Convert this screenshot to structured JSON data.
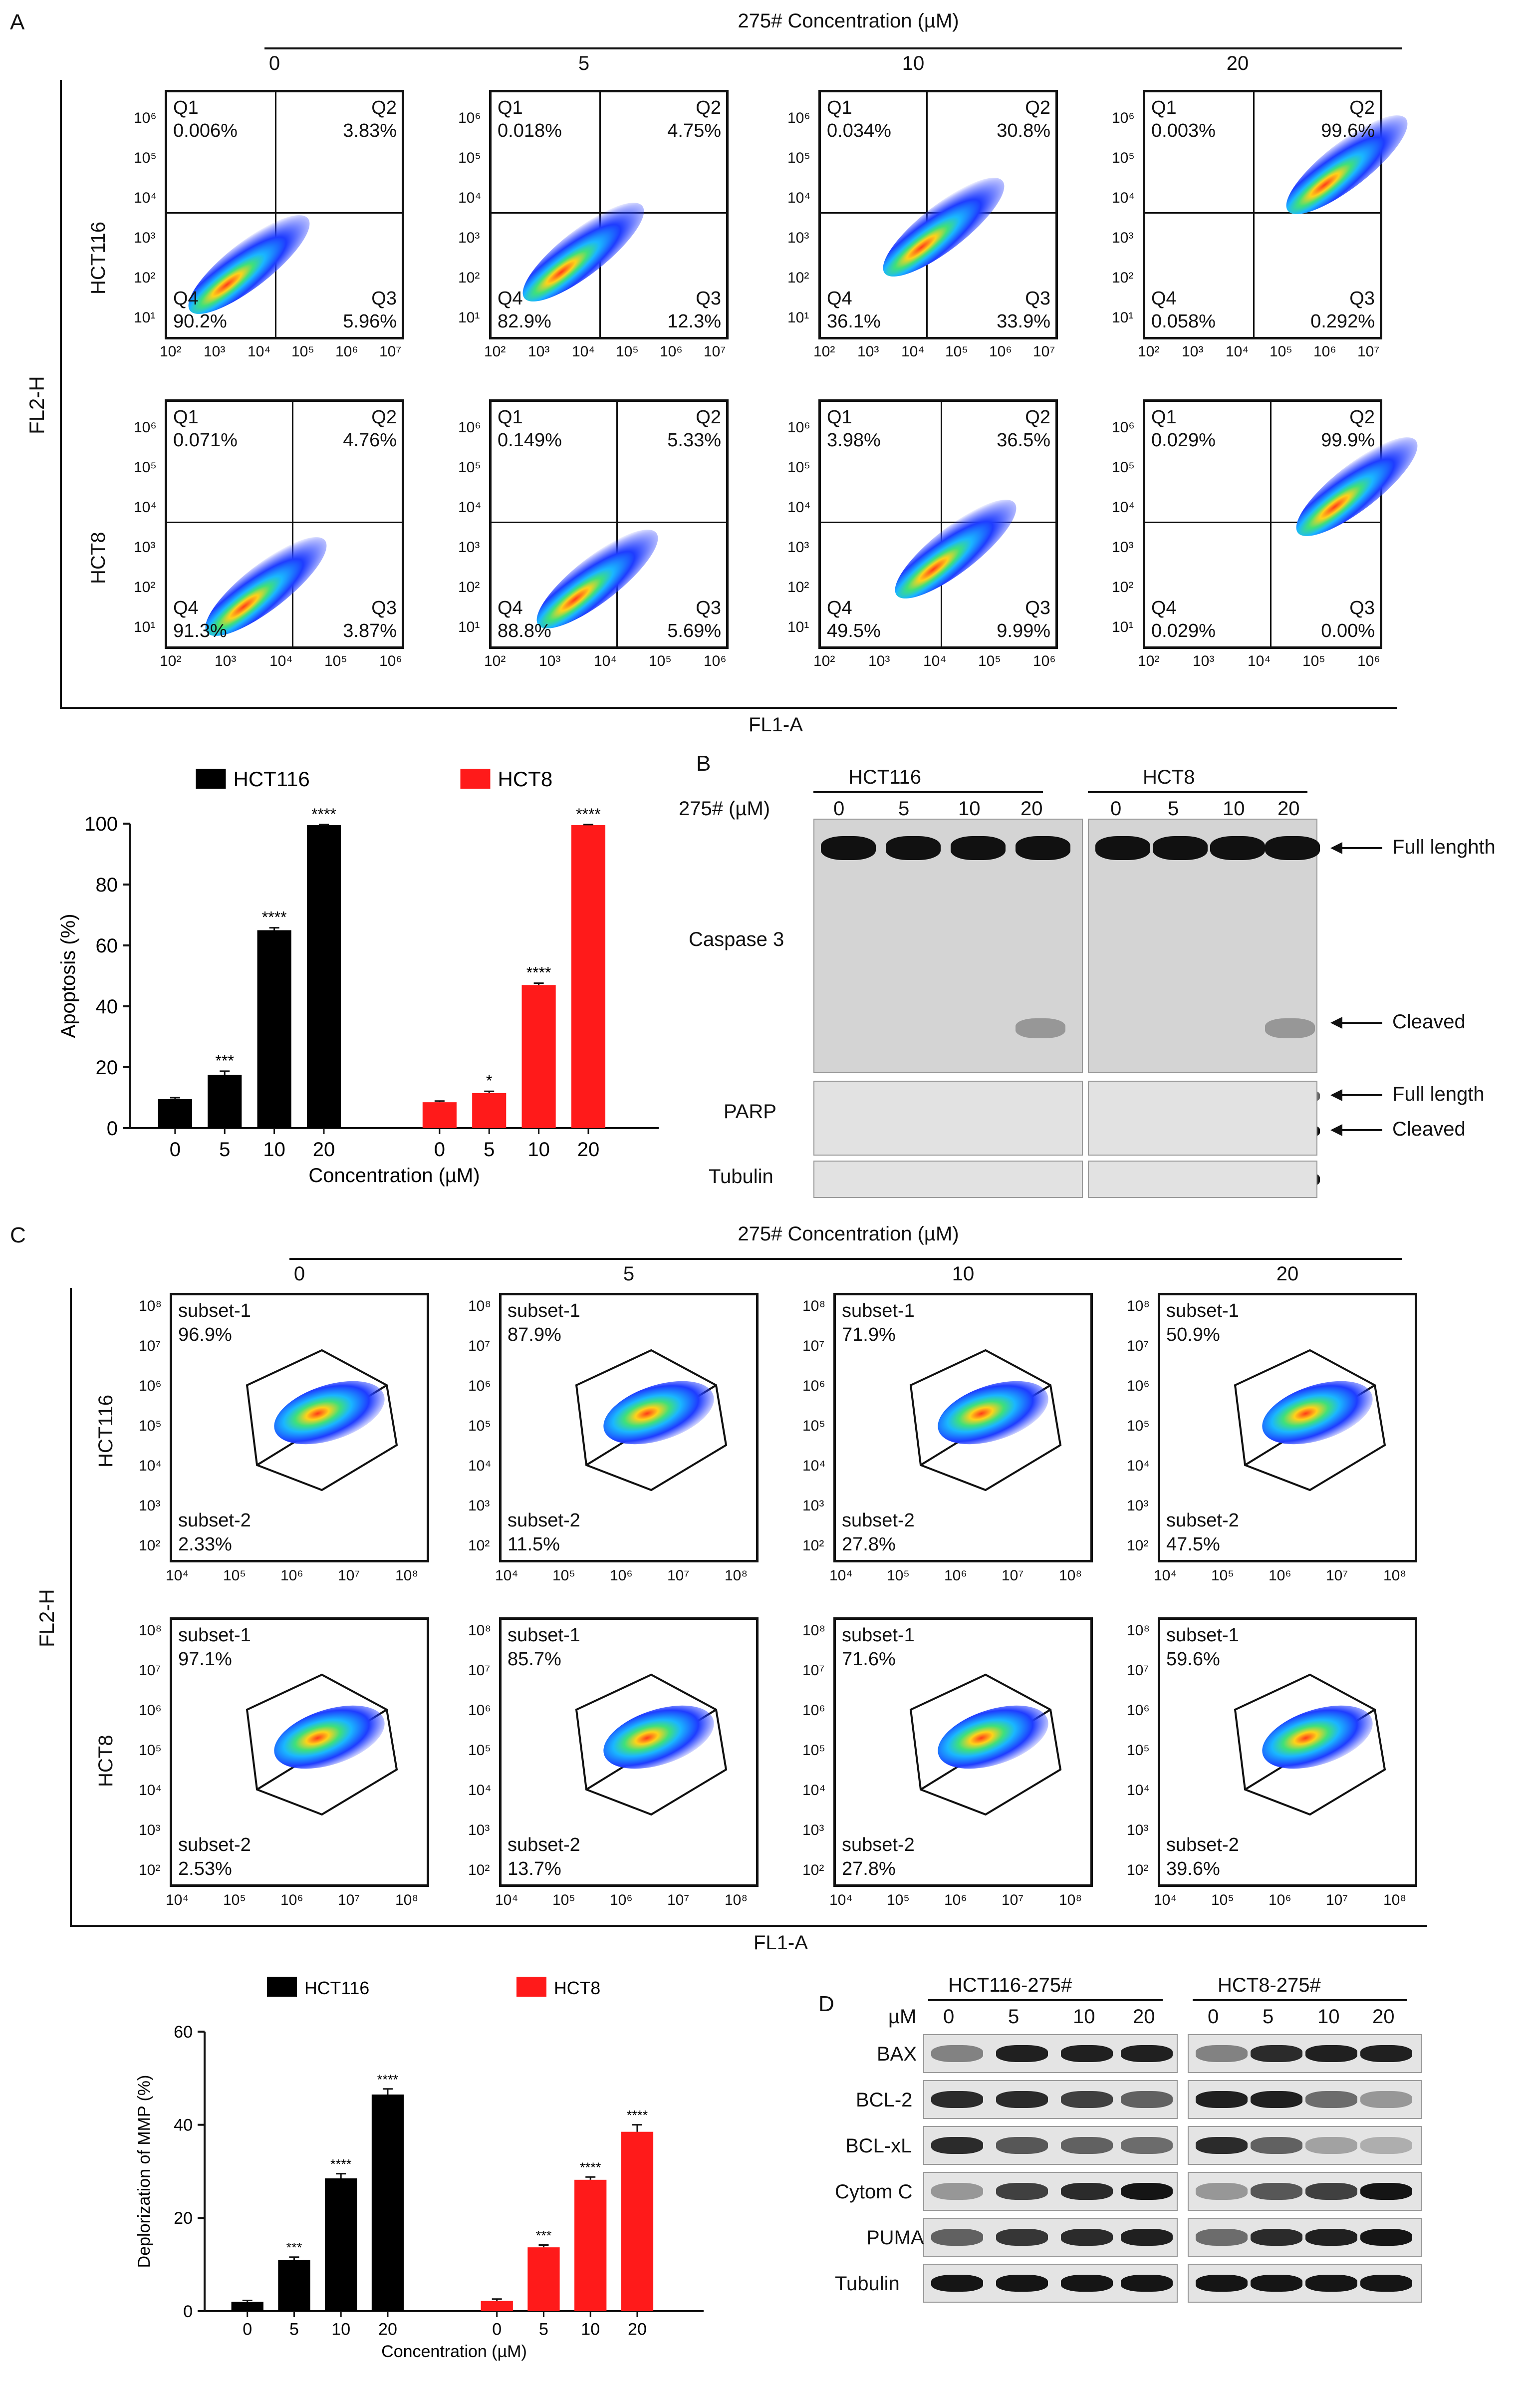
{
  "panels": {
    "a": "A",
    "b": "B",
    "c": "C",
    "d": "D"
  },
  "treatment_title": "275# Concentration (µM)",
  "concentrations": [
    "0",
    "5",
    "10",
    "20"
  ],
  "cell_lines": [
    "HCT116",
    "HCT8"
  ],
  "panelA": {
    "y_axis": "FL2-H",
    "x_axis": "FL1-A",
    "quadrant_names": [
      "Q1",
      "Q2",
      "Q3",
      "Q4"
    ],
    "rows": [
      {
        "cell": "HCT116",
        "plots": [
          {
            "q1": "0.006%",
            "q2": "3.83%",
            "q3": "5.96%",
            "q4": "90.2%"
          },
          {
            "q1": "0.018%",
            "q2": "4.75%",
            "q3": "12.3%",
            "q4": "82.9%"
          },
          {
            "q1": "0.034%",
            "q2": "30.8%",
            "q3": "33.9%",
            "q4": "36.1%"
          },
          {
            "q1": "0.003%",
            "q2": "99.6%",
            "q3": "0.292%",
            "q4": "0.058%"
          }
        ]
      },
      {
        "cell": "HCT8",
        "plots": [
          {
            "q1": "0.071%",
            "q2": "4.76%",
            "q3": "3.87%",
            "q4": "91.3%"
          },
          {
            "q1": "0.149%",
            "q2": "5.33%",
            "q3": "5.69%",
            "q4": "88.8%"
          },
          {
            "q1": "3.98%",
            "q2": "36.5%",
            "q3": "9.99%",
            "q4": "49.5%"
          },
          {
            "q1": "0.029%",
            "q2": "99.9%",
            "q3": "0.00%",
            "q4": "0.029%"
          }
        ]
      }
    ],
    "y_ticks": [
      "10⁶",
      "10⁵",
      "10⁴",
      "10³",
      "10²",
      "10¹"
    ],
    "x_ticks_row1": [
      "10²",
      "10³",
      "10⁴",
      "10⁵",
      "10⁶",
      "10⁷"
    ],
    "x_ticks_row2": [
      "10²",
      "10³",
      "10⁴",
      "10⁵",
      "10⁶"
    ]
  },
  "panelC": {
    "y_axis": "FL2-H",
    "x_axis": "FL1-A",
    "subset1_label": "subset-1",
    "subset2_label": "subset-2",
    "rows": [
      {
        "cell": "HCT116",
        "plots": [
          {
            "s1": "96.9%",
            "s2": "2.33%"
          },
          {
            "s1": "87.9%",
            "s2": "11.5%"
          },
          {
            "s1": "71.9%",
            "s2": "27.8%"
          },
          {
            "s1": "50.9%",
            "s2": "47.5%"
          }
        ]
      },
      {
        "cell": "HCT8",
        "plots": [
          {
            "s1": "97.1%",
            "s2": "2.53%"
          },
          {
            "s1": "85.7%",
            "s2": "13.7%"
          },
          {
            "s1": "71.6%",
            "s2": "27.8%"
          },
          {
            "s1": "59.6%",
            "s2": "39.6%"
          }
        ]
      }
    ],
    "y_ticks": [
      "10⁸",
      "10⁷",
      "10⁶",
      "10⁵",
      "10⁴",
      "10³",
      "10²"
    ],
    "x_ticks": [
      "10⁴",
      "10⁵",
      "10⁶",
      "10⁷",
      "10⁸"
    ]
  },
  "panelB": {
    "cell_lines": [
      "HCT116",
      "HCT8"
    ],
    "treatment_label": "275# (µM)",
    "conc_labels": [
      "0",
      "5",
      "10",
      "20"
    ],
    "blots": [
      "Caspase 3",
      "PARP",
      "Tubulin"
    ],
    "annotations": [
      "Full lenghth",
      "Cleaved",
      "Full length",
      "Cleaved"
    ]
  },
  "panelD": {
    "cell_lines": [
      "HCT116-275#",
      "HCT8-275#"
    ],
    "unit_label": "µM",
    "conc_labels": [
      "0",
      "5",
      "10",
      "20"
    ],
    "blots": [
      "BAX",
      "BCL-2",
      "BCL-xL",
      "Cytom C",
      "PUMA",
      "Tubulin"
    ]
  },
  "colors": {
    "hct116": "#000000",
    "hct8": "#ff1a1a"
  },
  "chart_data": [
    {
      "type": "bar",
      "title": "",
      "xlabel": "Concentration (µM)",
      "ylabel": "Apoptosis (%)",
      "ylim": [
        0,
        100
      ],
      "yticks": [
        0,
        20,
        40,
        60,
        80,
        100
      ],
      "categories": [
        "0",
        "5",
        "10",
        "20"
      ],
      "series": [
        {
          "name": "HCT116",
          "values": [
            9.5,
            17.5,
            65,
            99.5
          ],
          "errors": [
            0.5,
            1.2,
            0.8,
            0.2
          ],
          "sig": [
            "",
            "***",
            "****",
            "****"
          ]
        },
        {
          "name": "HCT8",
          "values": [
            8.5,
            11.5,
            47,
            99.5
          ],
          "errors": [
            0.4,
            0.6,
            0.6,
            0.2
          ],
          "sig": [
            "",
            "*",
            "****",
            "****"
          ]
        }
      ]
    },
    {
      "type": "bar",
      "title": "",
      "xlabel": "Concentration (µM)",
      "ylabel": "Deplorization of MMP (%)",
      "ylim": [
        0,
        60
      ],
      "yticks": [
        0,
        20,
        40,
        60
      ],
      "categories": [
        "0",
        "5",
        "10",
        "20"
      ],
      "series": [
        {
          "name": "HCT116",
          "values": [
            2,
            11,
            28.5,
            46.5
          ],
          "errors": [
            0.3,
            0.6,
            1.0,
            1.2
          ],
          "sig": [
            "",
            "***",
            "****",
            "****"
          ]
        },
        {
          "name": "HCT8",
          "values": [
            2.2,
            13.7,
            28.2,
            38.5
          ],
          "errors": [
            0.4,
            0.5,
            0.6,
            1.5
          ],
          "sig": [
            "",
            "***",
            "****",
            "****"
          ]
        }
      ]
    }
  ]
}
